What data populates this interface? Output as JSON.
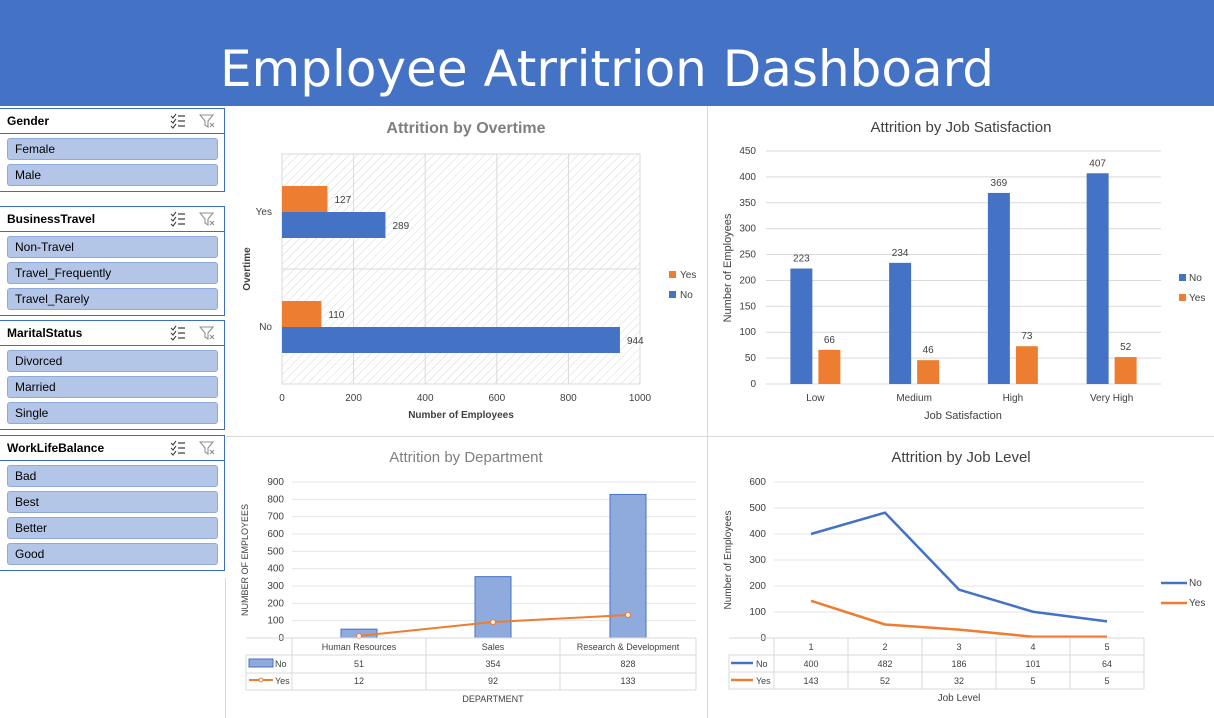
{
  "dashboard": {
    "title": "Employee Atrritrion Dashboard"
  },
  "slicers": [
    {
      "title": "Gender",
      "items": [
        "Female",
        "Male"
      ]
    },
    {
      "title": "BusinessTravel",
      "items": [
        "Non-Travel",
        "Travel_Frequently",
        "Travel_Rarely"
      ]
    },
    {
      "title": "MaritalStatus",
      "items": [
        "Divorced",
        "Married",
        "Single"
      ]
    },
    {
      "title": "WorkLifeBalance",
      "items": [
        "Bad",
        "Best",
        "Better",
        "Good"
      ]
    }
  ],
  "colors": {
    "banner": "#4472c4",
    "no": "#4472c4",
    "yes": "#ed7d31",
    "dept_bar": "#8faadc"
  },
  "chart_data": [
    {
      "id": "overtime",
      "type": "bar",
      "orientation": "horizontal",
      "title": "Attrition by Overtime",
      "xlabel": "Number of Employees",
      "ylabel": "Overtime",
      "categories": [
        "Yes",
        "No"
      ],
      "series": [
        {
          "name": "Yes",
          "values": [
            127,
            110
          ]
        },
        {
          "name": "No",
          "values": [
            289,
            944
          ]
        }
      ],
      "xlim": [
        0,
        1000
      ],
      "xticks": [
        "0",
        "200",
        "400",
        "600",
        "800",
        "1000"
      ],
      "legend": "right"
    },
    {
      "id": "job_satisfaction",
      "type": "bar",
      "title": "Attrition by Job Satisfaction",
      "xlabel": "Job Satisfaction",
      "ylabel": "Number of Employees",
      "categories": [
        "Low",
        "Medium",
        "High",
        "Very High"
      ],
      "series": [
        {
          "name": "No",
          "values": [
            223,
            234,
            369,
            407
          ]
        },
        {
          "name": "Yes",
          "values": [
            66,
            46,
            73,
            52
          ]
        }
      ],
      "ylim": [
        0,
        450
      ],
      "yticks": [
        "0",
        "50",
        "100",
        "150",
        "200",
        "250",
        "300",
        "350",
        "400",
        "450"
      ],
      "legend": "right"
    },
    {
      "id": "department",
      "type": "bar",
      "title": "Attrition by Department",
      "xlabel": "DEPARTMENT",
      "ylabel": "NUMBER OF EMPLOYEES",
      "categories": [
        "Human Resources",
        "Sales",
        "Research & Development"
      ],
      "series": [
        {
          "name": "No",
          "values": [
            51,
            354,
            828
          ],
          "render": "bar"
        },
        {
          "name": "Yes",
          "values": [
            12,
            92,
            133
          ],
          "render": "line"
        }
      ],
      "ylim": [
        0,
        900
      ],
      "yticks": [
        "0",
        "100",
        "200",
        "300",
        "400",
        "500",
        "600",
        "700",
        "800",
        "900"
      ],
      "legend": "data-table"
    },
    {
      "id": "job_level",
      "type": "line",
      "title": "Attrition by Job Level",
      "xlabel": "Job Level",
      "ylabel": "Number of Employees",
      "categories": [
        "1",
        "2",
        "3",
        "4",
        "5"
      ],
      "series": [
        {
          "name": "No",
          "values": [
            400,
            482,
            186,
            101,
            64
          ]
        },
        {
          "name": "Yes",
          "values": [
            143,
            52,
            32,
            5,
            5
          ]
        }
      ],
      "ylim": [
        0,
        600
      ],
      "yticks": [
        "0",
        "100",
        "200",
        "300",
        "400",
        "500",
        "600"
      ],
      "legend": "right"
    }
  ]
}
